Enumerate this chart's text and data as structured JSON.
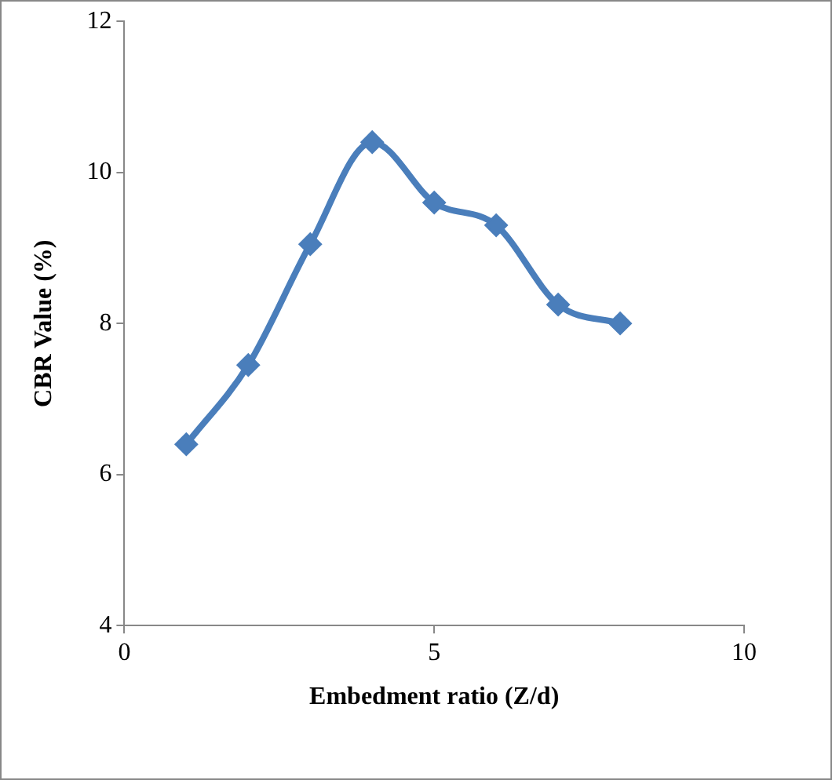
{
  "chart_data": {
    "type": "line",
    "xlabel": "Embedment ratio (Z/d)",
    "ylabel": "CBR Value (%)",
    "x": [
      1,
      2,
      3,
      4,
      5,
      6,
      7,
      8
    ],
    "series": [
      {
        "color": "#4a7ebb",
        "values": [
          6.4,
          7.45,
          9.05,
          10.4,
          9.6,
          9.3,
          8.25,
          8.0
        ]
      }
    ],
    "xlim": [
      0,
      10
    ],
    "xticks": [
      0,
      5,
      10
    ],
    "ylim": [
      4,
      12
    ],
    "yticks": [
      4,
      6,
      8,
      10,
      12
    ],
    "grid": false,
    "legend": false,
    "marker": "diamond",
    "line_style": "solid"
  }
}
